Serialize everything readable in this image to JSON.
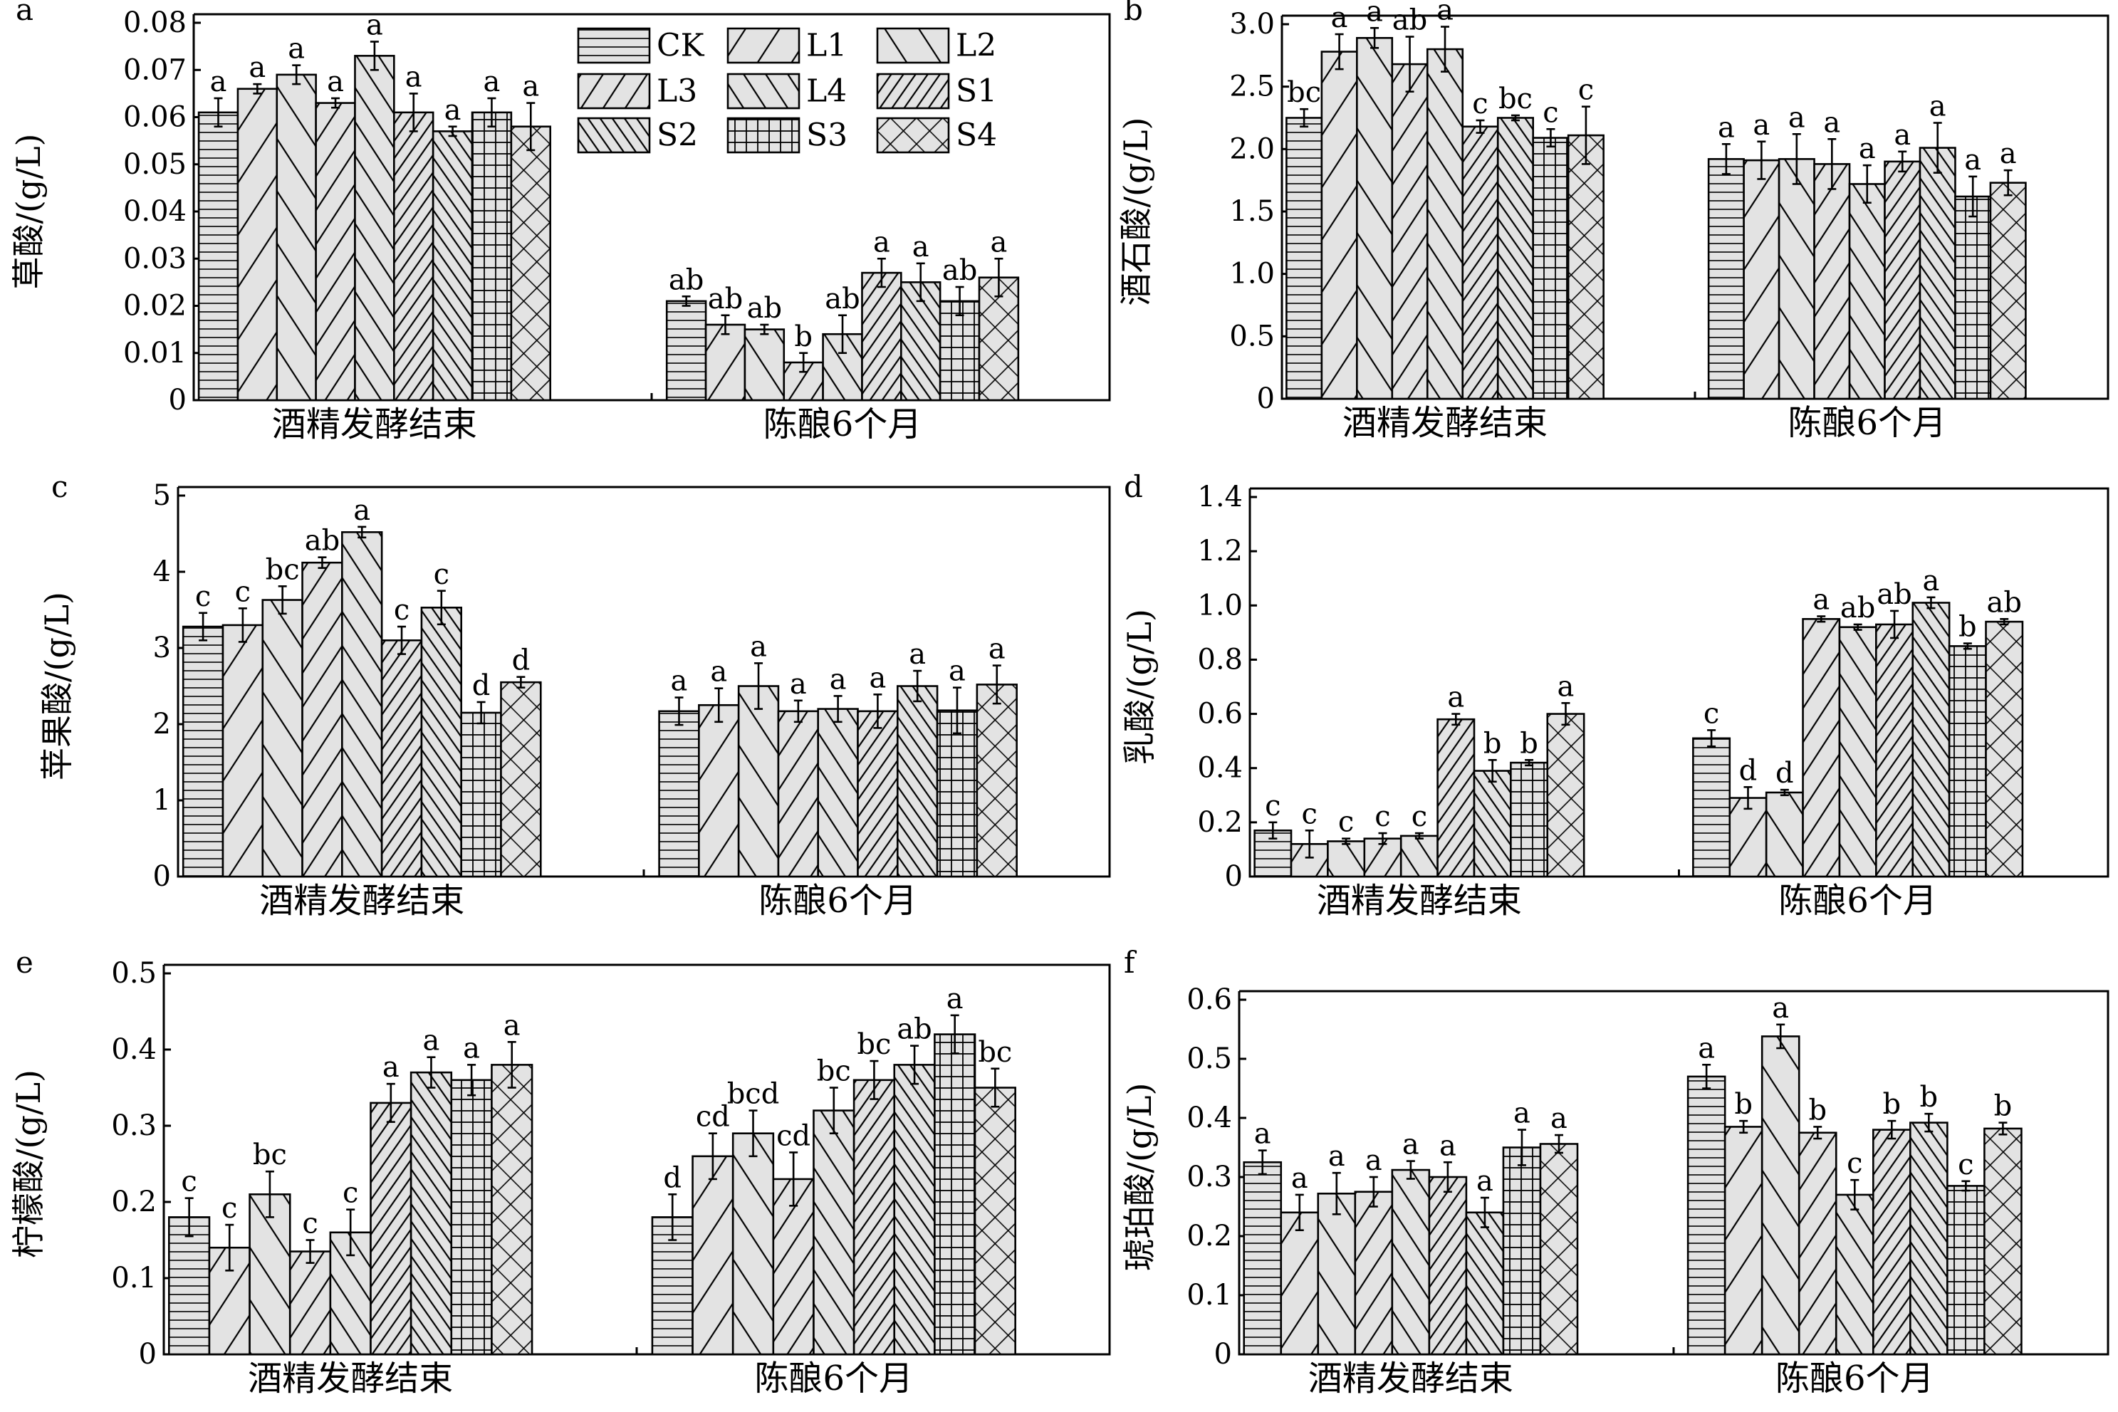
{
  "chart_data": [
    {
      "type": "bar",
      "panel": "a",
      "ylabel": "草酸/(g/L)",
      "ylim": [
        0,
        0.08
      ],
      "yticks": [
        "0",
        "0.01",
        "0.02",
        "0.03",
        "0.04",
        "0.05",
        "0.06",
        "0.07",
        "0.08"
      ],
      "categories": [
        "酒精发酵结束",
        "陈酿6个月"
      ],
      "series": [
        {
          "name": "CK",
          "values": [
            0.061,
            0.021
          ],
          "errors": [
            0.003,
            0.001
          ],
          "labels": [
            "a",
            "ab"
          ]
        },
        {
          "name": "L1",
          "values": [
            0.066,
            0.016
          ],
          "errors": [
            0.001,
            0.002
          ],
          "labels": [
            "a",
            "ab"
          ]
        },
        {
          "name": "L2",
          "values": [
            0.069,
            0.015
          ],
          "errors": [
            0.002,
            0.001
          ],
          "labels": [
            "a",
            "ab"
          ]
        },
        {
          "name": "L3",
          "values": [
            0.063,
            0.008
          ],
          "errors": [
            0.001,
            0.002
          ],
          "labels": [
            "a",
            "b"
          ]
        },
        {
          "name": "L4",
          "values": [
            0.073,
            0.014
          ],
          "errors": [
            0.003,
            0.004
          ],
          "labels": [
            "a",
            "ab"
          ]
        },
        {
          "name": "S1",
          "values": [
            0.061,
            0.027
          ],
          "errors": [
            0.004,
            0.003
          ],
          "labels": [
            "a",
            "a"
          ]
        },
        {
          "name": "S2",
          "values": [
            0.057,
            0.025
          ],
          "errors": [
            0.001,
            0.004
          ],
          "labels": [
            "a",
            "a"
          ]
        },
        {
          "name": "S3",
          "values": [
            0.061,
            0.021
          ],
          "errors": [
            0.003,
            0.003
          ],
          "labels": [
            "a",
            "ab"
          ]
        },
        {
          "name": "S4",
          "values": [
            0.058,
            0.026
          ],
          "errors": [
            0.005,
            0.004
          ],
          "labels": [
            "a",
            "a"
          ]
        }
      ]
    },
    {
      "type": "bar",
      "panel": "b",
      "ylabel": "酒石酸/(g/L)",
      "ylim": [
        0,
        3.0
      ],
      "yticks": [
        "0",
        "0.5",
        "1.0",
        "1.5",
        "2.0",
        "2.5",
        "3.0"
      ],
      "categories": [
        "酒精发酵结束",
        "陈酿6个月"
      ],
      "series": [
        {
          "name": "CK",
          "values": [
            2.25,
            1.92
          ],
          "errors": [
            0.07,
            0.12
          ],
          "labels": [
            "bc",
            "a"
          ]
        },
        {
          "name": "L1",
          "values": [
            2.78,
            1.91
          ],
          "errors": [
            0.14,
            0.15
          ],
          "labels": [
            "a",
            "a"
          ]
        },
        {
          "name": "L2",
          "values": [
            2.89,
            1.92
          ],
          "errors": [
            0.08,
            0.2
          ],
          "labels": [
            "a",
            "a"
          ]
        },
        {
          "name": "L3",
          "values": [
            2.68,
            1.88
          ],
          "errors": [
            0.22,
            0.2
          ],
          "labels": [
            "ab",
            "a"
          ]
        },
        {
          "name": "L4",
          "values": [
            2.8,
            1.72
          ],
          "errors": [
            0.18,
            0.15
          ],
          "labels": [
            "a",
            "a"
          ]
        },
        {
          "name": "S1",
          "values": [
            2.18,
            1.9
          ],
          "errors": [
            0.05,
            0.08
          ],
          "labels": [
            "c",
            "a"
          ]
        },
        {
          "name": "S2",
          "values": [
            2.25,
            2.01
          ],
          "errors": [
            0.02,
            0.2
          ],
          "labels": [
            "bc",
            "a"
          ]
        },
        {
          "name": "S3",
          "values": [
            2.09,
            1.62
          ],
          "errors": [
            0.07,
            0.16
          ],
          "labels": [
            "c",
            "a"
          ]
        },
        {
          "name": "S4",
          "values": [
            2.11,
            1.73
          ],
          "errors": [
            0.23,
            0.1
          ],
          "labels": [
            "c",
            "a"
          ]
        }
      ]
    },
    {
      "type": "bar",
      "panel": "c",
      "ylabel": "苹果酸/(g/L)",
      "ylim": [
        0,
        5
      ],
      "yticks": [
        "0",
        "1",
        "2",
        "3",
        "4",
        "5"
      ],
      "categories": [
        "酒精发酵结束",
        "陈酿6个月"
      ],
      "series": [
        {
          "name": "CK",
          "values": [
            3.28,
            2.17
          ],
          "errors": [
            0.18,
            0.18
          ],
          "labels": [
            "c",
            "a"
          ]
        },
        {
          "name": "L1",
          "values": [
            3.3,
            2.25
          ],
          "errors": [
            0.22,
            0.22
          ],
          "labels": [
            "c",
            "a"
          ]
        },
        {
          "name": "L2",
          "values": [
            3.63,
            2.5
          ],
          "errors": [
            0.18,
            0.3
          ],
          "labels": [
            "bc",
            "a"
          ]
        },
        {
          "name": "L3",
          "values": [
            4.12,
            2.17
          ],
          "errors": [
            0.07,
            0.14
          ],
          "labels": [
            "ab",
            "a"
          ]
        },
        {
          "name": "L4",
          "values": [
            4.52,
            2.2
          ],
          "errors": [
            0.07,
            0.17
          ],
          "labels": [
            "a",
            "a"
          ]
        },
        {
          "name": "S1",
          "values": [
            3.1,
            2.17
          ],
          "errors": [
            0.18,
            0.22
          ],
          "labels": [
            "c",
            "a"
          ]
        },
        {
          "name": "S2",
          "values": [
            3.53,
            2.5
          ],
          "errors": [
            0.22,
            0.2
          ],
          "labels": [
            "c",
            "a"
          ]
        },
        {
          "name": "S3",
          "values": [
            2.15,
            2.18
          ],
          "errors": [
            0.14,
            0.3
          ],
          "labels": [
            "d",
            "a"
          ]
        },
        {
          "name": "S4",
          "values": [
            2.55,
            2.52
          ],
          "errors": [
            0.07,
            0.25
          ],
          "labels": [
            "d",
            "a"
          ]
        }
      ]
    },
    {
      "type": "bar",
      "panel": "d",
      "ylabel": "乳酸/(g/L)",
      "ylim": [
        0,
        1.4
      ],
      "yticks": [
        "0",
        "0.2",
        "0.4",
        "0.6",
        "0.8",
        "1.0",
        "1.2",
        "1.4"
      ],
      "categories": [
        "酒精发酵结束",
        "陈酿6个月"
      ],
      "series": [
        {
          "name": "CK",
          "values": [
            0.17,
            0.51
          ],
          "errors": [
            0.03,
            0.03
          ],
          "labels": [
            "c",
            "c"
          ]
        },
        {
          "name": "L1",
          "values": [
            0.12,
            0.29
          ],
          "errors": [
            0.05,
            0.04
          ],
          "labels": [
            "c",
            "d"
          ]
        },
        {
          "name": "L2",
          "values": [
            0.13,
            0.31
          ],
          "errors": [
            0.01,
            0.01
          ],
          "labels": [
            "c",
            "d"
          ]
        },
        {
          "name": "L3",
          "values": [
            0.14,
            0.95
          ],
          "errors": [
            0.02,
            0.01
          ],
          "labels": [
            "c",
            "a"
          ]
        },
        {
          "name": "L4",
          "values": [
            0.15,
            0.92
          ],
          "errors": [
            0.01,
            0.01
          ],
          "labels": [
            "c",
            "ab"
          ]
        },
        {
          "name": "S1",
          "values": [
            0.58,
            0.93
          ],
          "errors": [
            0.02,
            0.05
          ],
          "labels": [
            "a",
            "ab"
          ]
        },
        {
          "name": "S2",
          "values": [
            0.39,
            1.01
          ],
          "errors": [
            0.04,
            0.02
          ],
          "labels": [
            "b",
            "a"
          ]
        },
        {
          "name": "S3",
          "values": [
            0.42,
            0.85
          ],
          "errors": [
            0.01,
            0.01
          ],
          "labels": [
            "b",
            "b"
          ]
        },
        {
          "name": "S4",
          "values": [
            0.6,
            0.94
          ],
          "errors": [
            0.04,
            0.01
          ],
          "labels": [
            "a",
            "ab"
          ]
        }
      ]
    },
    {
      "type": "bar",
      "panel": "e",
      "ylabel": "柠檬酸/(g/L)",
      "ylim": [
        0,
        0.5
      ],
      "yticks": [
        "0",
        "0.1",
        "0.2",
        "0.3",
        "0.4",
        "0.5"
      ],
      "categories": [
        "酒精发酵结束",
        "陈酿6个月"
      ],
      "series": [
        {
          "name": "CK",
          "values": [
            0.18,
            0.18
          ],
          "errors": [
            0.025,
            0.03
          ],
          "labels": [
            "c",
            "d"
          ]
        },
        {
          "name": "L1",
          "values": [
            0.14,
            0.26
          ],
          "errors": [
            0.03,
            0.03
          ],
          "labels": [
            "c",
            "cd"
          ]
        },
        {
          "name": "L2",
          "values": [
            0.21,
            0.29
          ],
          "errors": [
            0.03,
            0.03
          ],
          "labels": [
            "bc",
            "bcd"
          ]
        },
        {
          "name": "L3",
          "values": [
            0.135,
            0.23
          ],
          "errors": [
            0.015,
            0.035
          ],
          "labels": [
            "c",
            "cd"
          ]
        },
        {
          "name": "L4",
          "values": [
            0.16,
            0.32
          ],
          "errors": [
            0.03,
            0.03
          ],
          "labels": [
            "c",
            "bc"
          ]
        },
        {
          "name": "S1",
          "values": [
            0.33,
            0.36
          ],
          "errors": [
            0.025,
            0.025
          ],
          "labels": [
            "a",
            "bc"
          ]
        },
        {
          "name": "S2",
          "values": [
            0.37,
            0.38
          ],
          "errors": [
            0.02,
            0.025
          ],
          "labels": [
            "a",
            "ab"
          ]
        },
        {
          "name": "S3",
          "values": [
            0.36,
            0.42
          ],
          "errors": [
            0.02,
            0.025
          ],
          "labels": [
            "a",
            "a"
          ]
        },
        {
          "name": "S4",
          "values": [
            0.38,
            0.35
          ],
          "errors": [
            0.03,
            0.025
          ],
          "labels": [
            "a",
            "bc"
          ]
        }
      ]
    },
    {
      "type": "bar",
      "panel": "f",
      "ylabel": "琥珀酸/(g/L)",
      "ylim": [
        0,
        0.6
      ],
      "yticks": [
        "0",
        "0.1",
        "0.2",
        "0.3",
        "0.4",
        "0.5",
        "0.6"
      ],
      "categories": [
        "酒精发酵结束",
        "陈酿6个月"
      ],
      "series": [
        {
          "name": "CK",
          "values": [
            0.325,
            0.47
          ],
          "errors": [
            0.02,
            0.02
          ],
          "labels": [
            "a",
            "a"
          ]
        },
        {
          "name": "L1",
          "values": [
            0.24,
            0.385
          ],
          "errors": [
            0.03,
            0.01
          ],
          "labels": [
            "a",
            "b"
          ]
        },
        {
          "name": "L2",
          "values": [
            0.272,
            0.538
          ],
          "errors": [
            0.035,
            0.02
          ],
          "labels": [
            "a",
            "a"
          ]
        },
        {
          "name": "L3",
          "values": [
            0.275,
            0.375
          ],
          "errors": [
            0.025,
            0.01
          ],
          "labels": [
            "a",
            "b"
          ]
        },
        {
          "name": "L4",
          "values": [
            0.312,
            0.27
          ],
          "errors": [
            0.015,
            0.025
          ],
          "labels": [
            "a",
            "c"
          ]
        },
        {
          "name": "S1",
          "values": [
            0.3,
            0.38
          ],
          "errors": [
            0.025,
            0.015
          ],
          "labels": [
            "a",
            "b"
          ]
        },
        {
          "name": "S2",
          "values": [
            0.24,
            0.392
          ],
          "errors": [
            0.025,
            0.015
          ],
          "labels": [
            "a",
            "b"
          ]
        },
        {
          "name": "S3",
          "values": [
            0.35,
            0.285
          ],
          "errors": [
            0.03,
            0.008
          ],
          "labels": [
            "a",
            "c"
          ]
        },
        {
          "name": "S4",
          "values": [
            0.356,
            0.382
          ],
          "errors": [
            0.015,
            0.01
          ],
          "labels": [
            "a",
            "b"
          ]
        }
      ]
    }
  ],
  "legend": {
    "items": [
      "CK",
      "L1",
      "L2",
      "L3",
      "L4",
      "S1",
      "S2",
      "S3",
      "S4"
    ]
  }
}
